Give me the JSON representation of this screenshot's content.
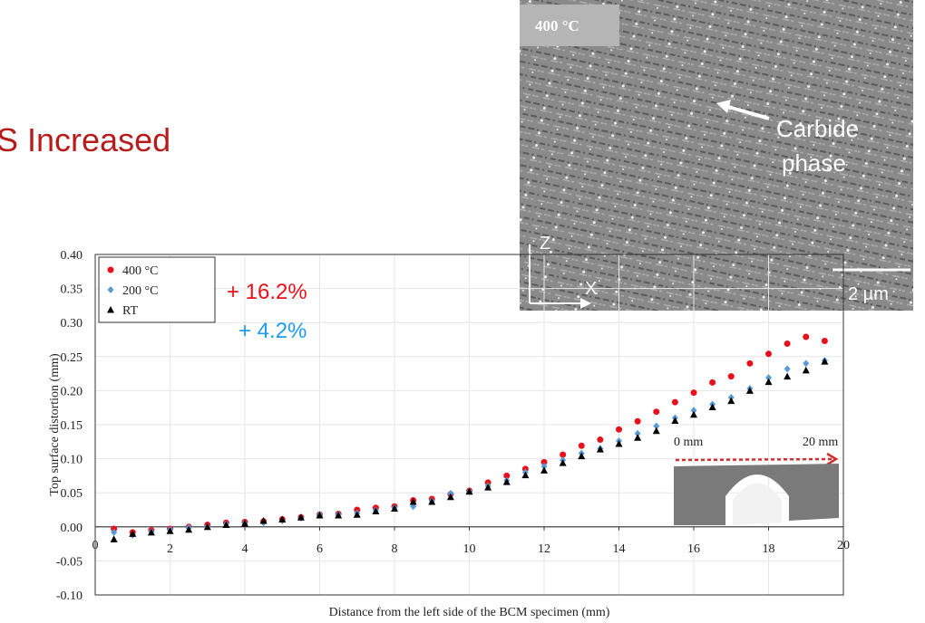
{
  "slide_title": "S Increased",
  "micrograph": {
    "temperature_label": "400 °C",
    "annotation": [
      "Carbide",
      "phase"
    ],
    "axis_z": "Z",
    "axis_x": "X",
    "scale_bar": "2 µm"
  },
  "specimen_photo": {
    "left_label": "0 mm",
    "right_label": "20 mm"
  },
  "chart_data": {
    "type": "scatter",
    "y_label": "Top surface distortion (mm)",
    "x_label": "Distance from the left side of the BCM specimen (mm)",
    "annotations": [
      {
        "text": "+ 16.2%",
        "color": "#e8101a"
      },
      {
        "text": "+ 4.2%",
        "color": "#1e9bef"
      }
    ],
    "x": [
      0.5,
      1,
      1.5,
      2,
      2.5,
      3,
      3.5,
      4,
      4.5,
      5,
      5.5,
      6,
      6.5,
      7,
      7.5,
      8,
      8.5,
      9,
      9.5,
      10,
      10.5,
      11,
      11.5,
      12,
      12.5,
      13,
      13.5,
      14,
      14.5,
      15,
      15.5,
      16,
      16.5,
      17,
      17.5,
      18,
      18.5,
      19,
      19.5
    ],
    "series": [
      {
        "name": "400 °C",
        "color": "#e8101a",
        "marker": "circle",
        "values": [
          -0.003,
          -0.008,
          -0.005,
          -0.003,
          0.0,
          0.003,
          0.006,
          0.007,
          0.008,
          0.011,
          0.014,
          0.018,
          0.019,
          0.025,
          0.028,
          0.03,
          0.039,
          0.041,
          0.048,
          0.053,
          0.065,
          0.075,
          0.085,
          0.095,
          0.106,
          0.119,
          0.128,
          0.143,
          0.155,
          0.169,
          0.183,
          0.197,
          0.212,
          0.221,
          0.24,
          0.254,
          0.269,
          0.279,
          0.273
        ]
      },
      {
        "name": "200 °C",
        "color": "#5b9bd5",
        "marker": "diamond",
        "values": [
          -0.008,
          -0.012,
          -0.007,
          -0.004,
          -0.001,
          0.0,
          0.004,
          0.005,
          0.006,
          0.009,
          0.013,
          0.018,
          0.018,
          0.02,
          0.024,
          0.028,
          0.03,
          0.038,
          0.049,
          0.052,
          0.06,
          0.068,
          0.08,
          0.089,
          0.098,
          0.108,
          0.115,
          0.126,
          0.137,
          0.148,
          0.16,
          0.171,
          0.18,
          0.19,
          0.203,
          0.219,
          0.232,
          0.24,
          0.244
        ]
      },
      {
        "name": "RT",
        "color": "#000000",
        "marker": "triangle",
        "values": [
          -0.018,
          -0.01,
          -0.008,
          -0.006,
          -0.004,
          0.0,
          0.003,
          0.005,
          0.009,
          0.011,
          0.014,
          0.017,
          0.017,
          0.018,
          0.023,
          0.027,
          0.037,
          0.037,
          0.044,
          0.052,
          0.058,
          0.066,
          0.076,
          0.083,
          0.094,
          0.104,
          0.114,
          0.122,
          0.131,
          0.141,
          0.156,
          0.165,
          0.176,
          0.185,
          0.2,
          0.213,
          0.221,
          0.23,
          0.243
        ]
      }
    ],
    "xlim": [
      0,
      20
    ],
    "xticks": [
      0,
      2,
      4,
      6,
      8,
      10,
      12,
      14,
      16,
      18,
      20
    ],
    "ylim": [
      -0.1,
      0.4
    ],
    "yticks": [
      {
        "value": -0.1,
        "label": "-0.10"
      },
      {
        "value": -0.05,
        "label": "-0.05"
      },
      {
        "value": 0,
        "label": "0.00"
      },
      {
        "value": 0.05,
        "label": "0.05"
      },
      {
        "value": 0.1,
        "label": "0.10"
      },
      {
        "value": 0.15,
        "label": "0.15"
      },
      {
        "value": 0.2,
        "label": "0.20"
      },
      {
        "value": 0.25,
        "label": "0.25"
      },
      {
        "value": 0.3,
        "label": "0.30"
      },
      {
        "value": 0.35,
        "label": "0.35"
      },
      {
        "value": 0.4,
        "label": "0.40"
      }
    ],
    "grid": true,
    "legend": "top-left"
  }
}
